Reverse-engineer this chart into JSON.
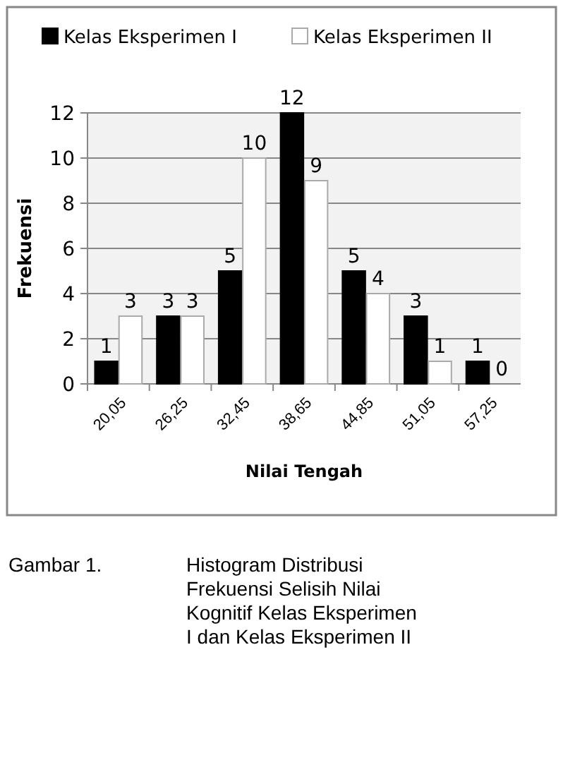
{
  "chart_data": {
    "type": "bar",
    "xlabel": "Nilai Tengah",
    "ylabel": "Frekuensi",
    "categories": [
      "20,05",
      "26,25",
      "32,45",
      "38,65",
      "44,85",
      "51,05",
      "57,25"
    ],
    "series": [
      {
        "name": "Kelas Eksperimen I",
        "color": "#000000",
        "values": [
          1,
          3,
          5,
          12,
          5,
          3,
          1
        ]
      },
      {
        "name": "Kelas Eksperimen II",
        "color": "#ffffff",
        "values": [
          3,
          3,
          10,
          9,
          4,
          1,
          0
        ]
      }
    ],
    "ylim": [
      0,
      12
    ],
    "yticks": [
      0,
      2,
      4,
      6,
      8,
      10,
      12
    ],
    "grid": "y",
    "legend": "top",
    "data_labels": true,
    "annotations": [
      "Gambar 1. Histogram Distribusi Frekuensi Selisih Nilai Kognitif Kelas Eksperimen I dan Kelas Eksperimen II"
    ]
  }
}
